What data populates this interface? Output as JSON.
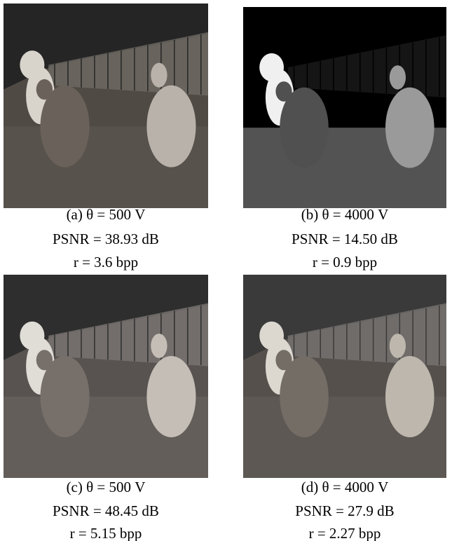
{
  "panels": [
    {
      "label": "(a) θ = 500 V",
      "psnr": "PSNR = 38.93 dB",
      "rate": "r = 3.6 bpp"
    },
    {
      "label": "(b) θ = 4000 V",
      "psnr": "PSNR = 14.50 dB",
      "rate": "r = 0.9 bpp"
    },
    {
      "label": "(c) θ = 500 V",
      "psnr": "PSNR = 48.45 dB",
      "rate": "r = 5.15 bpp"
    },
    {
      "label": "(d) θ = 4000 V",
      "psnr": "PSNR = 27.9 dB",
      "rate": "r = 2.27 bpp"
    }
  ]
}
